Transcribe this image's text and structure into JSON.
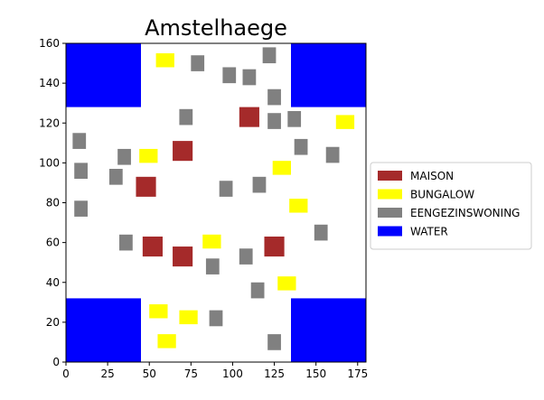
{
  "chart_data": {
    "type": "scatter",
    "title": "Amstelhaege",
    "xlabel": "",
    "ylabel": "",
    "xlim": [
      0,
      180
    ],
    "ylim": [
      0,
      160
    ],
    "xticks": [
      0,
      25,
      50,
      75,
      100,
      125,
      150,
      175
    ],
    "yticks": [
      0,
      20,
      40,
      60,
      80,
      100,
      120,
      140,
      160
    ],
    "grid": false,
    "legend_position": "right",
    "categories": [
      {
        "name": "MAISON",
        "color": "#a52a2a"
      },
      {
        "name": "BUNGALOW",
        "color": "#ffff00"
      },
      {
        "name": "EENGEZINSWONING",
        "color": "#808080"
      },
      {
        "name": "WATER",
        "color": "#0000ff"
      }
    ],
    "water": [
      {
        "x": 0,
        "y": 128,
        "w": 45,
        "h": 32
      },
      {
        "x": 135,
        "y": 128,
        "w": 45,
        "h": 32
      },
      {
        "x": 0,
        "y": 0,
        "w": 45,
        "h": 32
      },
      {
        "x": 135,
        "y": 0,
        "w": 45,
        "h": 32
      }
    ],
    "houses": [
      {
        "type": "MAISON",
        "x": 104,
        "y": 118,
        "w": 12,
        "h": 10
      },
      {
        "type": "MAISON",
        "x": 64,
        "y": 101,
        "w": 12,
        "h": 10
      },
      {
        "type": "MAISON",
        "x": 42,
        "y": 83,
        "w": 12,
        "h": 10
      },
      {
        "type": "MAISON",
        "x": 46,
        "y": 53,
        "w": 12,
        "h": 10
      },
      {
        "type": "MAISON",
        "x": 64,
        "y": 48,
        "w": 12,
        "h": 10
      },
      {
        "type": "MAISON",
        "x": 119,
        "y": 53,
        "w": 12,
        "h": 10
      },
      {
        "type": "BUNGALOW",
        "x": 54,
        "y": 148,
        "w": 11,
        "h": 7
      },
      {
        "type": "BUNGALOW",
        "x": 162,
        "y": 117,
        "w": 11,
        "h": 7
      },
      {
        "type": "BUNGALOW",
        "x": 44,
        "y": 100,
        "w": 11,
        "h": 7
      },
      {
        "type": "BUNGALOW",
        "x": 124,
        "y": 94,
        "w": 11,
        "h": 7
      },
      {
        "type": "BUNGALOW",
        "x": 134,
        "y": 75,
        "w": 11,
        "h": 7
      },
      {
        "type": "BUNGALOW",
        "x": 82,
        "y": 57,
        "w": 11,
        "h": 7
      },
      {
        "type": "BUNGALOW",
        "x": 127,
        "y": 36,
        "w": 11,
        "h": 7
      },
      {
        "type": "BUNGALOW",
        "x": 50,
        "y": 22,
        "w": 11,
        "h": 7
      },
      {
        "type": "BUNGALOW",
        "x": 68,
        "y": 19,
        "w": 11,
        "h": 7
      },
      {
        "type": "BUNGALOW",
        "x": 55,
        "y": 7,
        "w": 11,
        "h": 7
      },
      {
        "type": "EENGEZINSWONING",
        "x": 118,
        "y": 150,
        "w": 8,
        "h": 8
      },
      {
        "type": "EENGEZINSWONING",
        "x": 75,
        "y": 146,
        "w": 8,
        "h": 8
      },
      {
        "type": "EENGEZINSWONING",
        "x": 94,
        "y": 140,
        "w": 8,
        "h": 8
      },
      {
        "type": "EENGEZINSWONING",
        "x": 106,
        "y": 139,
        "w": 8,
        "h": 8
      },
      {
        "type": "EENGEZINSWONING",
        "x": 121,
        "y": 129,
        "w": 8,
        "h": 8
      },
      {
        "type": "EENGEZINSWONING",
        "x": 68,
        "y": 119,
        "w": 8,
        "h": 8
      },
      {
        "type": "EENGEZINSWONING",
        "x": 121,
        "y": 117,
        "w": 8,
        "h": 8
      },
      {
        "type": "EENGEZINSWONING",
        "x": 133,
        "y": 118,
        "w": 8,
        "h": 8
      },
      {
        "type": "EENGEZINSWONING",
        "x": 4,
        "y": 107,
        "w": 8,
        "h": 8
      },
      {
        "type": "EENGEZINSWONING",
        "x": 137,
        "y": 104,
        "w": 8,
        "h": 8
      },
      {
        "type": "EENGEZINSWONING",
        "x": 156,
        "y": 100,
        "w": 8,
        "h": 8
      },
      {
        "type": "EENGEZINSWONING",
        "x": 31,
        "y": 99,
        "w": 8,
        "h": 8
      },
      {
        "type": "EENGEZINSWONING",
        "x": 5,
        "y": 92,
        "w": 8,
        "h": 8
      },
      {
        "type": "EENGEZINSWONING",
        "x": 26,
        "y": 89,
        "w": 8,
        "h": 8
      },
      {
        "type": "EENGEZINSWONING",
        "x": 112,
        "y": 85,
        "w": 8,
        "h": 8
      },
      {
        "type": "EENGEZINSWONING",
        "x": 92,
        "y": 83,
        "w": 8,
        "h": 8
      },
      {
        "type": "EENGEZINSWONING",
        "x": 5,
        "y": 73,
        "w": 8,
        "h": 8
      },
      {
        "type": "EENGEZINSWONING",
        "x": 149,
        "y": 61,
        "w": 8,
        "h": 8
      },
      {
        "type": "EENGEZINSWONING",
        "x": 32,
        "y": 56,
        "w": 8,
        "h": 8
      },
      {
        "type": "EENGEZINSWONING",
        "x": 104,
        "y": 49,
        "w": 8,
        "h": 8
      },
      {
        "type": "EENGEZINSWONING",
        "x": 84,
        "y": 44,
        "w": 8,
        "h": 8
      },
      {
        "type": "EENGEZINSWONING",
        "x": 111,
        "y": 32,
        "w": 8,
        "h": 8
      },
      {
        "type": "EENGEZINSWONING",
        "x": 86,
        "y": 18,
        "w": 8,
        "h": 8
      },
      {
        "type": "EENGEZINSWONING",
        "x": 121,
        "y": 6,
        "w": 8,
        "h": 8
      }
    ]
  }
}
